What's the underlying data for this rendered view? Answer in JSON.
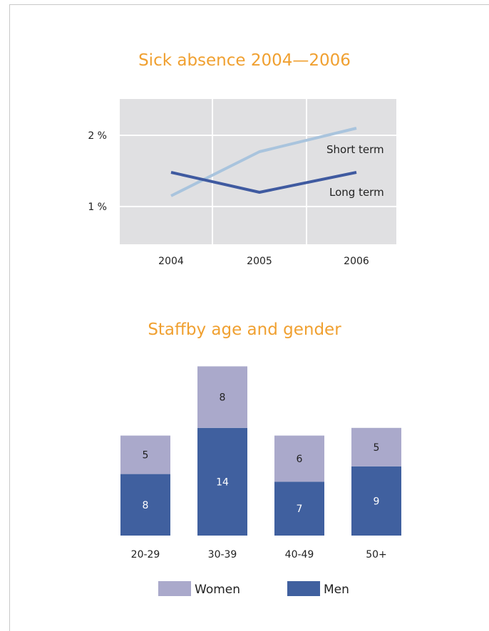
{
  "chart_data": [
    {
      "type": "line",
      "title": "Sick absence 2004—2006",
      "x": [
        "2004",
        "2005",
        "2006"
      ],
      "y_ticks": [
        "1 %",
        "2 %"
      ],
      "ylim": [
        0.5,
        2.5
      ],
      "grid": true,
      "series": [
        {
          "name": "Short term",
          "values": [
            1.15,
            1.77,
            2.1
          ],
          "color": "#a9c4dd"
        },
        {
          "name": "Long term",
          "values": [
            1.48,
            1.2,
            1.48
          ],
          "color": "#3f5aa0"
        }
      ]
    },
    {
      "type": "bar",
      "stacked": true,
      "title": "Staffby age and gender",
      "categories": [
        "20-29",
        "30-39",
        "40-49",
        "50+"
      ],
      "series": [
        {
          "name": "Men",
          "values": [
            8,
            14,
            7,
            9
          ],
          "color": "#40609f"
        },
        {
          "name": "Women",
          "values": [
            5,
            8,
            6,
            5
          ],
          "color": "#aaa9cb"
        }
      ],
      "legend": [
        "Women",
        "Men"
      ],
      "legend_position": "bottom"
    }
  ]
}
